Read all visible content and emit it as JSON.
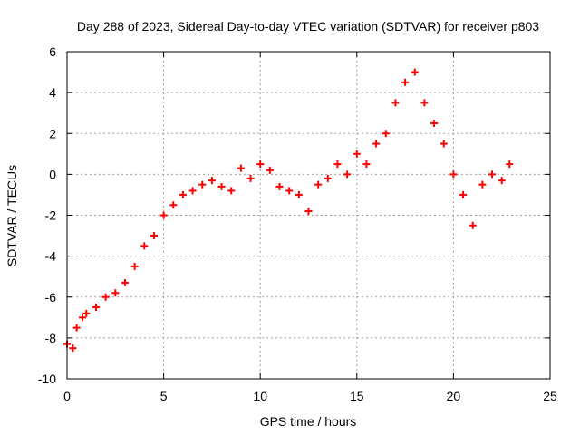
{
  "chart_data": {
    "type": "scatter",
    "title": "Day 288 of 2023, Sidereal Day-to-day VTEC variation (SDTVAR) for receiver p803",
    "xlabel": "GPS time / hours",
    "ylabel": "SDTVAR / TECUs",
    "xlim": [
      0,
      25
    ],
    "ylim": [
      -10,
      6
    ],
    "xticks": [
      0,
      5,
      10,
      15,
      20,
      25
    ],
    "yticks": [
      -10,
      -8,
      -6,
      -4,
      -2,
      0,
      2,
      4,
      6
    ],
    "grid": true,
    "marker": "+",
    "series": [
      {
        "name": "SDTVAR",
        "color": "#ff0000",
        "x": [
          0.0,
          0.3,
          0.5,
          0.8,
          1.0,
          1.5,
          2.0,
          2.5,
          3.0,
          3.5,
          4.0,
          4.5,
          5.0,
          5.5,
          6.0,
          6.5,
          7.0,
          7.5,
          8.0,
          8.5,
          9.0,
          9.5,
          10.0,
          10.5,
          11.0,
          11.5,
          12.0,
          12.5,
          13.0,
          13.5,
          14.0,
          14.5,
          15.0,
          15.5,
          16.0,
          16.5,
          17.0,
          17.5,
          18.0,
          18.5,
          19.0,
          19.5,
          20.0,
          20.5,
          21.0,
          21.5,
          22.0,
          22.5,
          22.9
        ],
        "y": [
          -8.3,
          -8.5,
          -7.5,
          -7.0,
          -6.8,
          -6.5,
          -6.0,
          -5.8,
          -5.3,
          -4.5,
          -3.5,
          -3.0,
          -2.0,
          -1.5,
          -1.0,
          -0.8,
          -0.5,
          -0.3,
          -0.6,
          -0.8,
          0.3,
          -0.2,
          0.5,
          0.2,
          -0.6,
          -0.8,
          -1.0,
          -1.8,
          -0.5,
          -0.2,
          0.5,
          0.0,
          1.0,
          0.5,
          1.5,
          2.0,
          3.5,
          4.5,
          5.0,
          3.5,
          2.5,
          1.5,
          0.0,
          -1.0,
          -2.5,
          -0.5,
          0.0,
          -0.3,
          0.5
        ]
      }
    ]
  }
}
